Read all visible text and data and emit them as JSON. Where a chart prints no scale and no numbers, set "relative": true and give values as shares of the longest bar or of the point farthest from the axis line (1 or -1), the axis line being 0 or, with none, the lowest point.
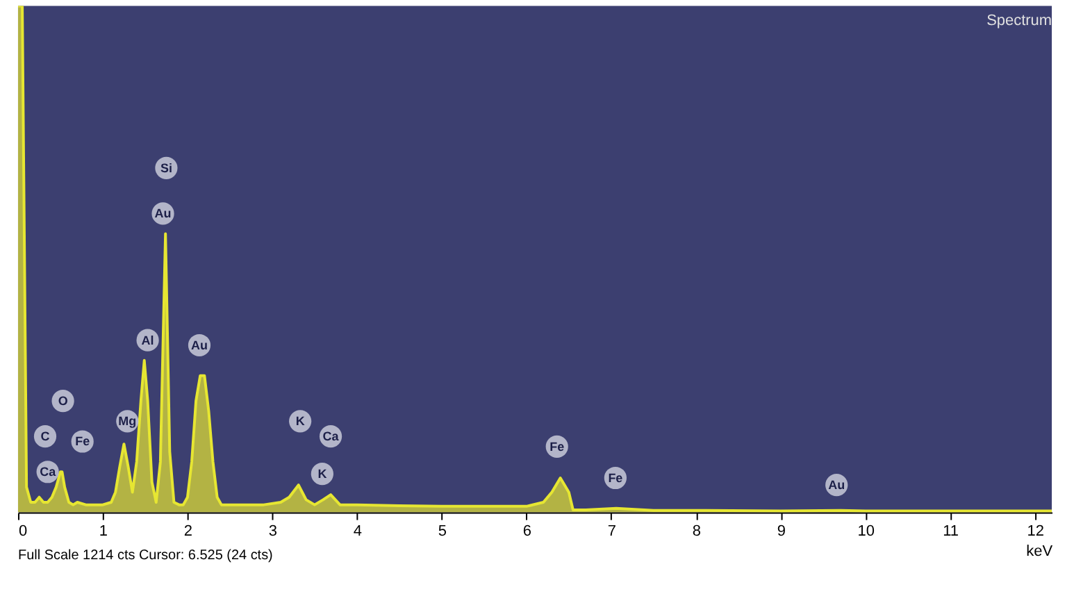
{
  "chart_data": {
    "type": "area",
    "title": "Spectrum",
    "xlabel": "keV",
    "relative": true,
    "grid": false,
    "xlim": [
      0,
      12.2
    ],
    "xticks": [
      0,
      1,
      2,
      3,
      4,
      5,
      6,
      7,
      8,
      9,
      10,
      11,
      12
    ],
    "x": [
      0,
      0.05,
      0.1,
      0.15,
      0.2,
      0.25,
      0.3,
      0.35,
      0.4,
      0.45,
      0.5,
      0.52,
      0.55,
      0.6,
      0.65,
      0.7,
      0.8,
      0.9,
      1.0,
      1.1,
      1.15,
      1.2,
      1.25,
      1.3,
      1.35,
      1.4,
      1.45,
      1.49,
      1.53,
      1.58,
      1.63,
      1.68,
      1.74,
      1.79,
      1.84,
      1.9,
      1.95,
      2.0,
      2.05,
      2.1,
      2.15,
      2.2,
      2.25,
      2.3,
      2.35,
      2.4,
      2.5,
      2.7,
      2.9,
      3.1,
      3.2,
      3.31,
      3.4,
      3.5,
      3.6,
      3.69,
      3.8,
      4.0,
      4.5,
      5.0,
      5.5,
      6.0,
      6.2,
      6.3,
      6.4,
      6.5,
      6.55,
      6.7,
      7.06,
      7.5,
      8.0,
      9.0,
      9.71,
      10,
      11,
      12.2
    ],
    "series": [
      {
        "color": "#e6e632",
        "values": [
          1,
          1,
          0.05,
          0.02,
          0.02,
          0.03,
          0.02,
          0.02,
          0.03,
          0.05,
          0.08,
          0.08,
          0.05,
          0.02,
          0.015,
          0.02,
          0.015,
          0.015,
          0.015,
          0.02,
          0.04,
          0.09,
          0.135,
          0.09,
          0.04,
          0.1,
          0.22,
          0.3,
          0.22,
          0.06,
          0.02,
          0.1,
          0.55,
          0.12,
          0.02,
          0.015,
          0.015,
          0.03,
          0.1,
          0.22,
          0.27,
          0.27,
          0.2,
          0.1,
          0.03,
          0.015,
          0.015,
          0.015,
          0.015,
          0.02,
          0.03,
          0.054,
          0.025,
          0.015,
          0.025,
          0.035,
          0.015,
          0.015,
          0.013,
          0.012,
          0.012,
          0.012,
          0.02,
          0.04,
          0.068,
          0.04,
          0.005,
          0.005,
          0.008,
          0.004,
          0.004,
          0.003,
          0.004,
          0.003,
          0.003,
          0.003
        ]
      }
    ],
    "annotations": [
      {
        "text": "C",
        "x": 0.32,
        "y": 0.15
      },
      {
        "text": "O",
        "x": 0.53,
        "y": 0.22
      },
      {
        "text": "Fe",
        "x": 0.76,
        "y": 0.14
      },
      {
        "text": "Ca",
        "x": 0.35,
        "y": 0.08
      },
      {
        "text": "Mg",
        "x": 1.29,
        "y": 0.18
      },
      {
        "text": "Al",
        "x": 1.53,
        "y": 0.34
      },
      {
        "text": "Si",
        "x": 1.75,
        "y": 0.68
      },
      {
        "text": "Au",
        "x": 1.71,
        "y": 0.59
      },
      {
        "text": "Au",
        "x": 2.14,
        "y": 0.33
      },
      {
        "text": "K",
        "x": 3.33,
        "y": 0.18
      },
      {
        "text": "Ca",
        "x": 3.69,
        "y": 0.15
      },
      {
        "text": "K",
        "x": 3.59,
        "y": 0.076
      },
      {
        "text": "Fe",
        "x": 6.36,
        "y": 0.13
      },
      {
        "text": "Fe",
        "x": 7.05,
        "y": 0.068
      },
      {
        "text": "Au",
        "x": 9.66,
        "y": 0.054
      },
      "Full Scale 1214 cts Cursor: 6.525 (24 cts)"
    ]
  }
}
